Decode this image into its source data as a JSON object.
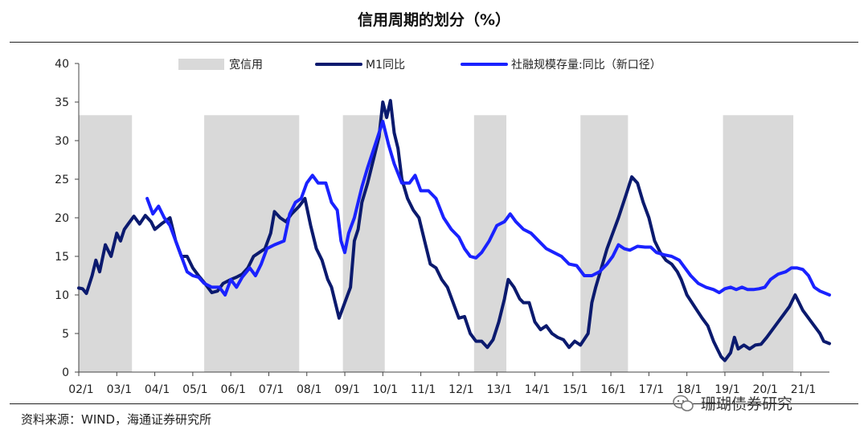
{
  "header": {
    "title": "信用周期的划分（%）"
  },
  "footer": {
    "source": "资料来源：WIND，海通证券研究所",
    "watermark": "珊瑚债券研究"
  },
  "colors": {
    "m1": "#0b1a6e",
    "tsf": "#1a22ff",
    "band": "#d9d9d9"
  },
  "chart_data": {
    "type": "line",
    "title": "信用周期的划分（%）",
    "xlabel": "",
    "ylabel": "",
    "ylim": [
      0,
      40
    ],
    "yticks": [
      "0",
      "5",
      "10",
      "15",
      "20",
      "25",
      "30",
      "35",
      "40"
    ],
    "xlim": [
      2002.0,
      2021.75
    ],
    "xticks": [
      {
        "t": 2002.0,
        "label": "02/1"
      },
      {
        "t": 2003.0,
        "label": "03/1"
      },
      {
        "t": 2004.0,
        "label": "04/1"
      },
      {
        "t": 2005.0,
        "label": "05/1"
      },
      {
        "t": 2006.0,
        "label": "06/1"
      },
      {
        "t": 2007.0,
        "label": "07/1"
      },
      {
        "t": 2008.0,
        "label": "08/1"
      },
      {
        "t": 2009.0,
        "label": "09/1"
      },
      {
        "t": 2010.0,
        "label": "10/1"
      },
      {
        "t": 2011.0,
        "label": "11/1"
      },
      {
        "t": 2012.0,
        "label": "12/1"
      },
      {
        "t": 2013.0,
        "label": "13/1"
      },
      {
        "t": 2014.0,
        "label": "14/1"
      },
      {
        "t": 2015.0,
        "label": "15/1"
      },
      {
        "t": 2016.0,
        "label": "16/1"
      },
      {
        "t": 2017.0,
        "label": "17/1"
      },
      {
        "t": 2018.0,
        "label": "18/1"
      },
      {
        "t": 2019.0,
        "label": "19/1"
      },
      {
        "t": 2020.0,
        "label": "20/1"
      },
      {
        "t": 2021.0,
        "label": "21/1"
      }
    ],
    "legend": [
      "宽信用",
      "M1同比",
      "社融规模存量:同比（新口径）"
    ],
    "bands": {
      "name": "宽信用",
      "top": 33.3,
      "periods": [
        [
          2002.0,
          2003.4
        ],
        [
          2005.3,
          2007.8
        ],
        [
          2008.95,
          2010.05
        ],
        [
          2012.4,
          2013.25
        ],
        [
          2015.2,
          2016.45
        ],
        [
          2018.95,
          2020.8
        ]
      ]
    },
    "series": [
      {
        "name": "M1同比",
        "points": [
          [
            2002.0,
            10.9
          ],
          [
            2002.1,
            10.8
          ],
          [
            2002.2,
            10.2
          ],
          [
            2002.35,
            12.5
          ],
          [
            2002.45,
            14.5
          ],
          [
            2002.55,
            13
          ],
          [
            2002.7,
            16.5
          ],
          [
            2002.85,
            15
          ],
          [
            2003.0,
            18
          ],
          [
            2003.1,
            17
          ],
          [
            2003.2,
            18.5
          ],
          [
            2003.3,
            19.2
          ],
          [
            2003.45,
            20.2
          ],
          [
            2003.6,
            19.2
          ],
          [
            2003.75,
            20.3
          ],
          [
            2003.9,
            19.5
          ],
          [
            2004.0,
            18.5
          ],
          [
            2004.2,
            19.3
          ],
          [
            2004.4,
            20
          ],
          [
            2004.55,
            17
          ],
          [
            2004.7,
            15
          ],
          [
            2004.85,
            15
          ],
          [
            2005.0,
            13.5
          ],
          [
            2005.15,
            12.5
          ],
          [
            2005.3,
            11.6
          ],
          [
            2005.5,
            10.3
          ],
          [
            2005.65,
            10.5
          ],
          [
            2005.8,
            11.5
          ],
          [
            2006.0,
            12
          ],
          [
            2006.15,
            12.3
          ],
          [
            2006.3,
            12.7
          ],
          [
            2006.45,
            13.5
          ],
          [
            2006.6,
            15
          ],
          [
            2006.75,
            15.5
          ],
          [
            2006.9,
            16
          ],
          [
            2007.05,
            18
          ],
          [
            2007.15,
            20.8
          ],
          [
            2007.3,
            20
          ],
          [
            2007.45,
            19.5
          ],
          [
            2007.6,
            20.5
          ],
          [
            2007.8,
            21.5
          ],
          [
            2007.95,
            22.5
          ],
          [
            2008.1,
            19
          ],
          [
            2008.25,
            16
          ],
          [
            2008.4,
            14.5
          ],
          [
            2008.55,
            12
          ],
          [
            2008.65,
            11
          ],
          [
            2008.75,
            9
          ],
          [
            2008.85,
            7
          ],
          [
            2009.0,
            9
          ],
          [
            2009.15,
            11
          ],
          [
            2009.25,
            17
          ],
          [
            2009.35,
            18.5
          ],
          [
            2009.45,
            22
          ],
          [
            2009.6,
            24.5
          ],
          [
            2009.75,
            27.5
          ],
          [
            2009.9,
            30.5
          ],
          [
            2010.0,
            35
          ],
          [
            2010.1,
            33
          ],
          [
            2010.2,
            35.2
          ],
          [
            2010.3,
            31
          ],
          [
            2010.4,
            29
          ],
          [
            2010.5,
            25
          ],
          [
            2010.65,
            22.5
          ],
          [
            2010.8,
            21
          ],
          [
            2010.95,
            20
          ],
          [
            2011.1,
            17
          ],
          [
            2011.25,
            14
          ],
          [
            2011.4,
            13.5
          ],
          [
            2011.55,
            12
          ],
          [
            2011.7,
            11
          ],
          [
            2011.85,
            9
          ],
          [
            2012.0,
            7
          ],
          [
            2012.15,
            7.2
          ],
          [
            2012.3,
            5
          ],
          [
            2012.45,
            4
          ],
          [
            2012.6,
            4
          ],
          [
            2012.75,
            3.2
          ],
          [
            2012.9,
            4.2
          ],
          [
            2013.05,
            6.5
          ],
          [
            2013.2,
            9.5
          ],
          [
            2013.3,
            12
          ],
          [
            2013.45,
            11
          ],
          [
            2013.6,
            9.5
          ],
          [
            2013.7,
            9
          ],
          [
            2013.85,
            9
          ],
          [
            2014.0,
            6.5
          ],
          [
            2014.15,
            5.5
          ],
          [
            2014.3,
            6
          ],
          [
            2014.45,
            5
          ],
          [
            2014.6,
            4.5
          ],
          [
            2014.75,
            4.2
          ],
          [
            2014.9,
            3.2
          ],
          [
            2015.05,
            4
          ],
          [
            2015.2,
            3.5
          ],
          [
            2015.4,
            5
          ],
          [
            2015.5,
            9
          ],
          [
            2015.6,
            11
          ],
          [
            2015.75,
            13.5
          ],
          [
            2015.9,
            16
          ],
          [
            2016.05,
            18
          ],
          [
            2016.2,
            20
          ],
          [
            2016.4,
            23
          ],
          [
            2016.55,
            25.3
          ],
          [
            2016.7,
            24.5
          ],
          [
            2016.85,
            22
          ],
          [
            2017.0,
            20
          ],
          [
            2017.15,
            17
          ],
          [
            2017.3,
            15.5
          ],
          [
            2017.45,
            14.5
          ],
          [
            2017.6,
            14
          ],
          [
            2017.75,
            13
          ],
          [
            2017.85,
            12
          ],
          [
            2018.0,
            10
          ],
          [
            2018.2,
            8.5
          ],
          [
            2018.4,
            7
          ],
          [
            2018.55,
            6
          ],
          [
            2018.7,
            4
          ],
          [
            2018.8,
            3
          ],
          [
            2018.9,
            2
          ],
          [
            2019.0,
            1.5
          ],
          [
            2019.15,
            2.5
          ],
          [
            2019.25,
            4.5
          ],
          [
            2019.35,
            3
          ],
          [
            2019.5,
            3.5
          ],
          [
            2019.65,
            3
          ],
          [
            2019.8,
            3.5
          ],
          [
            2019.95,
            3.6
          ],
          [
            2020.1,
            4.5
          ],
          [
            2020.25,
            5.5
          ],
          [
            2020.4,
            6.5
          ],
          [
            2020.55,
            7.5
          ],
          [
            2020.7,
            8.5
          ],
          [
            2020.85,
            10
          ],
          [
            2020.95,
            9
          ],
          [
            2021.05,
            8
          ],
          [
            2021.2,
            7
          ],
          [
            2021.35,
            6
          ],
          [
            2021.5,
            5
          ],
          [
            2021.6,
            4
          ],
          [
            2021.75,
            3.7
          ]
        ]
      },
      {
        "name": "社融规模存量:同比（新口径）",
        "points": [
          [
            2003.8,
            22.5
          ],
          [
            2003.95,
            20.5
          ],
          [
            2004.1,
            21.5
          ],
          [
            2004.25,
            20
          ],
          [
            2004.4,
            19
          ],
          [
            2004.55,
            17
          ],
          [
            2004.7,
            15
          ],
          [
            2004.85,
            13
          ],
          [
            2005.0,
            12.5
          ],
          [
            2005.15,
            12.3
          ],
          [
            2005.3,
            11.5
          ],
          [
            2005.5,
            11
          ],
          [
            2005.7,
            11
          ],
          [
            2005.85,
            10
          ],
          [
            2006.0,
            12
          ],
          [
            2006.15,
            11
          ],
          [
            2006.3,
            12.3
          ],
          [
            2006.5,
            13.5
          ],
          [
            2006.65,
            12.5
          ],
          [
            2006.8,
            14
          ],
          [
            2006.95,
            16
          ],
          [
            2007.15,
            16.5
          ],
          [
            2007.4,
            17
          ],
          [
            2007.55,
            20.5
          ],
          [
            2007.7,
            22
          ],
          [
            2007.85,
            22.5
          ],
          [
            2008.0,
            24.5
          ],
          [
            2008.15,
            25.5
          ],
          [
            2008.3,
            24.5
          ],
          [
            2008.5,
            24.5
          ],
          [
            2008.65,
            22
          ],
          [
            2008.8,
            21
          ],
          [
            2008.9,
            17
          ],
          [
            2009.0,
            15.5
          ],
          [
            2009.1,
            18
          ],
          [
            2009.25,
            20
          ],
          [
            2009.45,
            24
          ],
          [
            2009.6,
            26.5
          ],
          [
            2009.8,
            29.5
          ],
          [
            2010.0,
            32.5
          ],
          [
            2010.15,
            29.5
          ],
          [
            2010.3,
            27
          ],
          [
            2010.5,
            24.5
          ],
          [
            2010.7,
            24.5
          ],
          [
            2010.85,
            25.5
          ],
          [
            2011.0,
            23.5
          ],
          [
            2011.2,
            23.5
          ],
          [
            2011.4,
            22.5
          ],
          [
            2011.6,
            20
          ],
          [
            2011.8,
            18.5
          ],
          [
            2012.0,
            17.5
          ],
          [
            2012.15,
            16
          ],
          [
            2012.3,
            15
          ],
          [
            2012.45,
            14.8
          ],
          [
            2012.6,
            15.5
          ],
          [
            2012.8,
            17
          ],
          [
            2013.0,
            19
          ],
          [
            2013.2,
            19.5
          ],
          [
            2013.35,
            20.5
          ],
          [
            2013.5,
            19.5
          ],
          [
            2013.7,
            18.5
          ],
          [
            2013.9,
            18
          ],
          [
            2014.1,
            17
          ],
          [
            2014.3,
            16
          ],
          [
            2014.5,
            15.5
          ],
          [
            2014.7,
            15
          ],
          [
            2014.9,
            14
          ],
          [
            2015.1,
            13.8
          ],
          [
            2015.3,
            12.5
          ],
          [
            2015.5,
            12.5
          ],
          [
            2015.7,
            13
          ],
          [
            2015.9,
            14
          ],
          [
            2016.05,
            15
          ],
          [
            2016.2,
            16.5
          ],
          [
            2016.35,
            16
          ],
          [
            2016.5,
            15.8
          ],
          [
            2016.7,
            16.3
          ],
          [
            2016.9,
            16.2
          ],
          [
            2017.05,
            16.2
          ],
          [
            2017.2,
            15.5
          ],
          [
            2017.4,
            15.2
          ],
          [
            2017.6,
            15
          ],
          [
            2017.8,
            14.5
          ],
          [
            2017.95,
            13.5
          ],
          [
            2018.1,
            12.5
          ],
          [
            2018.3,
            11.5
          ],
          [
            2018.5,
            11
          ],
          [
            2018.7,
            10.7
          ],
          [
            2018.85,
            10.3
          ],
          [
            2019.0,
            10.8
          ],
          [
            2019.15,
            11
          ],
          [
            2019.3,
            10.7
          ],
          [
            2019.45,
            11
          ],
          [
            2019.6,
            10.7
          ],
          [
            2019.75,
            10.7
          ],
          [
            2019.9,
            10.8
          ],
          [
            2020.05,
            11
          ],
          [
            2020.2,
            12
          ],
          [
            2020.4,
            12.7
          ],
          [
            2020.6,
            13
          ],
          [
            2020.75,
            13.5
          ],
          [
            2020.9,
            13.5
          ],
          [
            2021.05,
            13.3
          ],
          [
            2021.2,
            12.5
          ],
          [
            2021.35,
            11
          ],
          [
            2021.5,
            10.5
          ],
          [
            2021.75,
            10
          ]
        ]
      }
    ]
  }
}
